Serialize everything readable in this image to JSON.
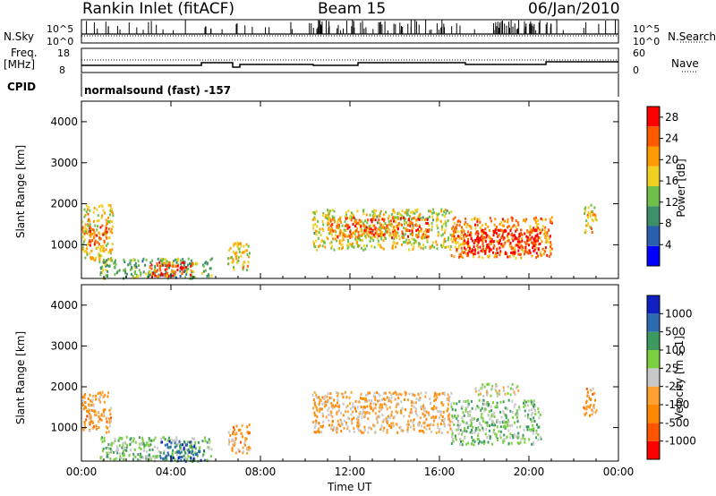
{
  "header": {
    "station": "Rankin Inlet (fitACF)",
    "beam": "Beam 15",
    "date": "06/Jan/2010"
  },
  "panels": {
    "nsky": {
      "label": "N.Sky",
      "tick_top": "10^5",
      "tick_bottom": "10^0",
      "right_label": "N.Search",
      "right_tick_top": "10^5",
      "right_tick_bottom": "10^0"
    },
    "freq": {
      "label_line1": "Freq.",
      "label_line2": "[MHz]",
      "tick_top": "18",
      "tick_bottom": "8",
      "right_label": "Nave",
      "right_tick_top": "60",
      "right_tick_bottom": "0"
    },
    "cpid": {
      "label": "CPID",
      "text": "normalsound (fast) -157"
    }
  },
  "colors": {
    "power_scale": [
      "#0000ff",
      "#2a5fb0",
      "#3d8f6a",
      "#6fc04a",
      "#f0d020",
      "#ff9a00",
      "#ff5a00",
      "#ff0000"
    ],
    "velocity_scale": [
      "#ff0000",
      "#ff5500",
      "#ff8800",
      "#ffa030",
      "#c8c8c8",
      "#7ad040",
      "#3c9a60",
      "#2e6ab0",
      "#1020c0"
    ]
  },
  "chart_data": [
    {
      "type": "heatmap",
      "name": "power",
      "ylabel": "Slant Range [km]",
      "xlabel": "",
      "x_ticks": [
        "00:00",
        "04:00",
        "08:00",
        "12:00",
        "16:00",
        "20:00",
        "00:00"
      ],
      "y_ticks": [
        "1000",
        "2000",
        "3000",
        "4000"
      ],
      "xlim_hours": [
        0,
        24
      ],
      "ylim_km": [
        180,
        4500
      ],
      "colorbar": {
        "label": "Power [dB]",
        "ticks": [
          "4",
          "8",
          "12",
          "16",
          "20",
          "24",
          "28"
        ],
        "range": [
          0,
          30
        ]
      },
      "regions": [
        {
          "t0": 0.0,
          "t1": 1.4,
          "r0": 600,
          "r1": 2000,
          "value": 18
        },
        {
          "t0": 0.3,
          "t1": 1.1,
          "r0": 1000,
          "r1": 1500,
          "value": 26
        },
        {
          "t0": 0.8,
          "t1": 5.8,
          "r0": 200,
          "r1": 700,
          "value": 12
        },
        {
          "t0": 3.0,
          "t1": 5.0,
          "r0": 250,
          "r1": 600,
          "value": 26
        },
        {
          "t0": 6.5,
          "t1": 7.5,
          "r0": 400,
          "r1": 1100,
          "value": 18
        },
        {
          "t0": 10.3,
          "t1": 16.5,
          "r0": 900,
          "r1": 1900,
          "value": 16
        },
        {
          "t0": 11.0,
          "t1": 15.5,
          "r0": 1200,
          "r1": 1700,
          "value": 24
        },
        {
          "t0": 16.5,
          "t1": 21.0,
          "r0": 700,
          "r1": 1700,
          "value": 22
        },
        {
          "t0": 17.0,
          "t1": 20.5,
          "r0": 800,
          "r1": 1400,
          "value": 29
        },
        {
          "t0": 22.4,
          "t1": 23.0,
          "r0": 1300,
          "r1": 2000,
          "value": 18
        }
      ]
    },
    {
      "type": "heatmap",
      "name": "velocity",
      "ylabel": "Slant Range [km]",
      "xlabel": "Time UT",
      "x_ticks": [
        "00:00",
        "04:00",
        "08:00",
        "12:00",
        "16:00",
        "20:00",
        "00:00"
      ],
      "y_ticks": [
        "1000",
        "2000",
        "3000",
        "4000"
      ],
      "xlim_hours": [
        0,
        24
      ],
      "ylim_km": [
        180,
        4500
      ],
      "colorbar": {
        "label": "Velocity [m s-1]",
        "ticks": [
          "1000",
          "500",
          "100",
          "25",
          "-25",
          "-100",
          "-500",
          "-1000"
        ],
        "range": [
          -1000,
          1000
        ]
      },
      "regions": [
        {
          "t0": 0.0,
          "t1": 1.3,
          "r0": 900,
          "r1": 1900,
          "value": -300
        },
        {
          "t0": 0.8,
          "t1": 5.8,
          "r0": 200,
          "r1": 800,
          "value": 200
        },
        {
          "t0": 3.5,
          "t1": 5.5,
          "r0": 200,
          "r1": 700,
          "value": 600
        },
        {
          "t0": 6.5,
          "t1": 7.5,
          "r0": 400,
          "r1": 1100,
          "value": -300
        },
        {
          "t0": 10.3,
          "t1": 16.5,
          "r0": 900,
          "r1": 1900,
          "value": -200
        },
        {
          "t0": 16.5,
          "t1": 20.5,
          "r0": 600,
          "r1": 1700,
          "value": 200
        },
        {
          "t0": 17.5,
          "t1": 19.5,
          "r0": 1800,
          "r1": 2100,
          "value": 0
        },
        {
          "t0": 22.4,
          "t1": 23.0,
          "r0": 1300,
          "r1": 2000,
          "value": -300
        }
      ]
    }
  ]
}
